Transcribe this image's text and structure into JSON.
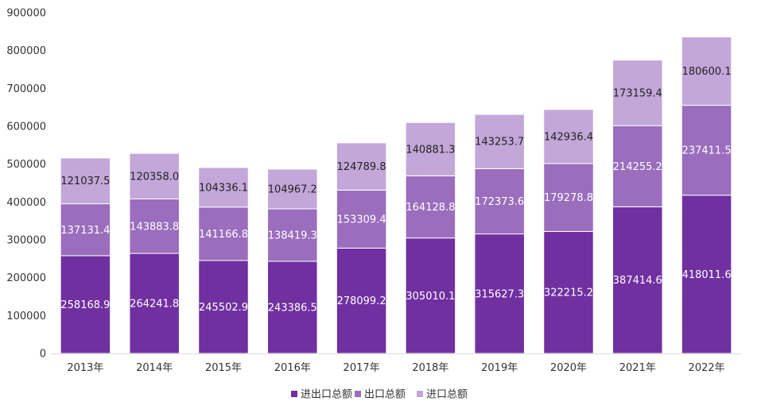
{
  "chart_data": {
    "type": "bar",
    "stacked": true,
    "categories": [
      "2013年",
      "2014年",
      "2015年",
      "2016年",
      "2017年",
      "2018年",
      "2019年",
      "2020年",
      "2021年",
      "2022年"
    ],
    "series": [
      {
        "name": "进出口总额",
        "color": "#7030A0",
        "values": [
          258168.9,
          264241.8,
          245502.9,
          243386.5,
          278099.2,
          305010.1,
          315627.3,
          322215.2,
          387414.6,
          418011.6
        ]
      },
      {
        "name": "出口总额",
        "color": "#9B6DBD",
        "values": [
          137131.4,
          143883.8,
          141166.8,
          138419.3,
          153309.4,
          164128.8,
          172373.6,
          179278.8,
          214255.2,
          237411.5
        ]
      },
      {
        "name": "进口总额",
        "color": "#C3A7D9",
        "values": [
          121037.5,
          120358.0,
          104336.1,
          104967.2,
          124789.8,
          140881.3,
          143253.7,
          142936.4,
          173159.4,
          180600.1
        ]
      }
    ],
    "data_labels": {
      "进出口总额": [
        "258168.9",
        "264241.8",
        "245502.9",
        "243386.5",
        "278099.2",
        "305010.1",
        "315627.3",
        "322215.2",
        "387414.6",
        "418011.6"
      ],
      "出口总额": [
        "137131.4",
        "143883.8",
        "141166.8",
        "138419.3",
        "153309.4",
        "164128.8",
        "172373.6",
        "179278.8",
        "214255.2",
        "237411.5"
      ],
      "进口总额": [
        "121037.5",
        "120358.0",
        "104336.1",
        "104967.2",
        "124789.8",
        "140881.3",
        "143253.7",
        "142936.4",
        "173159.4",
        "180600.1"
      ]
    },
    "label_colors": {
      "进出口总额": "#ffffff",
      "出口总额": "#ffffff",
      "进口总额": "#222222"
    },
    "yticks": [
      "0",
      "100000",
      "200000",
      "300000",
      "400000",
      "500000",
      "600000",
      "700000",
      "800000",
      "900000"
    ],
    "ylim": [
      0,
      900000
    ],
    "title": "",
    "xlabel": "",
    "ylabel": "",
    "grid": false,
    "legend_position": "bottom"
  }
}
